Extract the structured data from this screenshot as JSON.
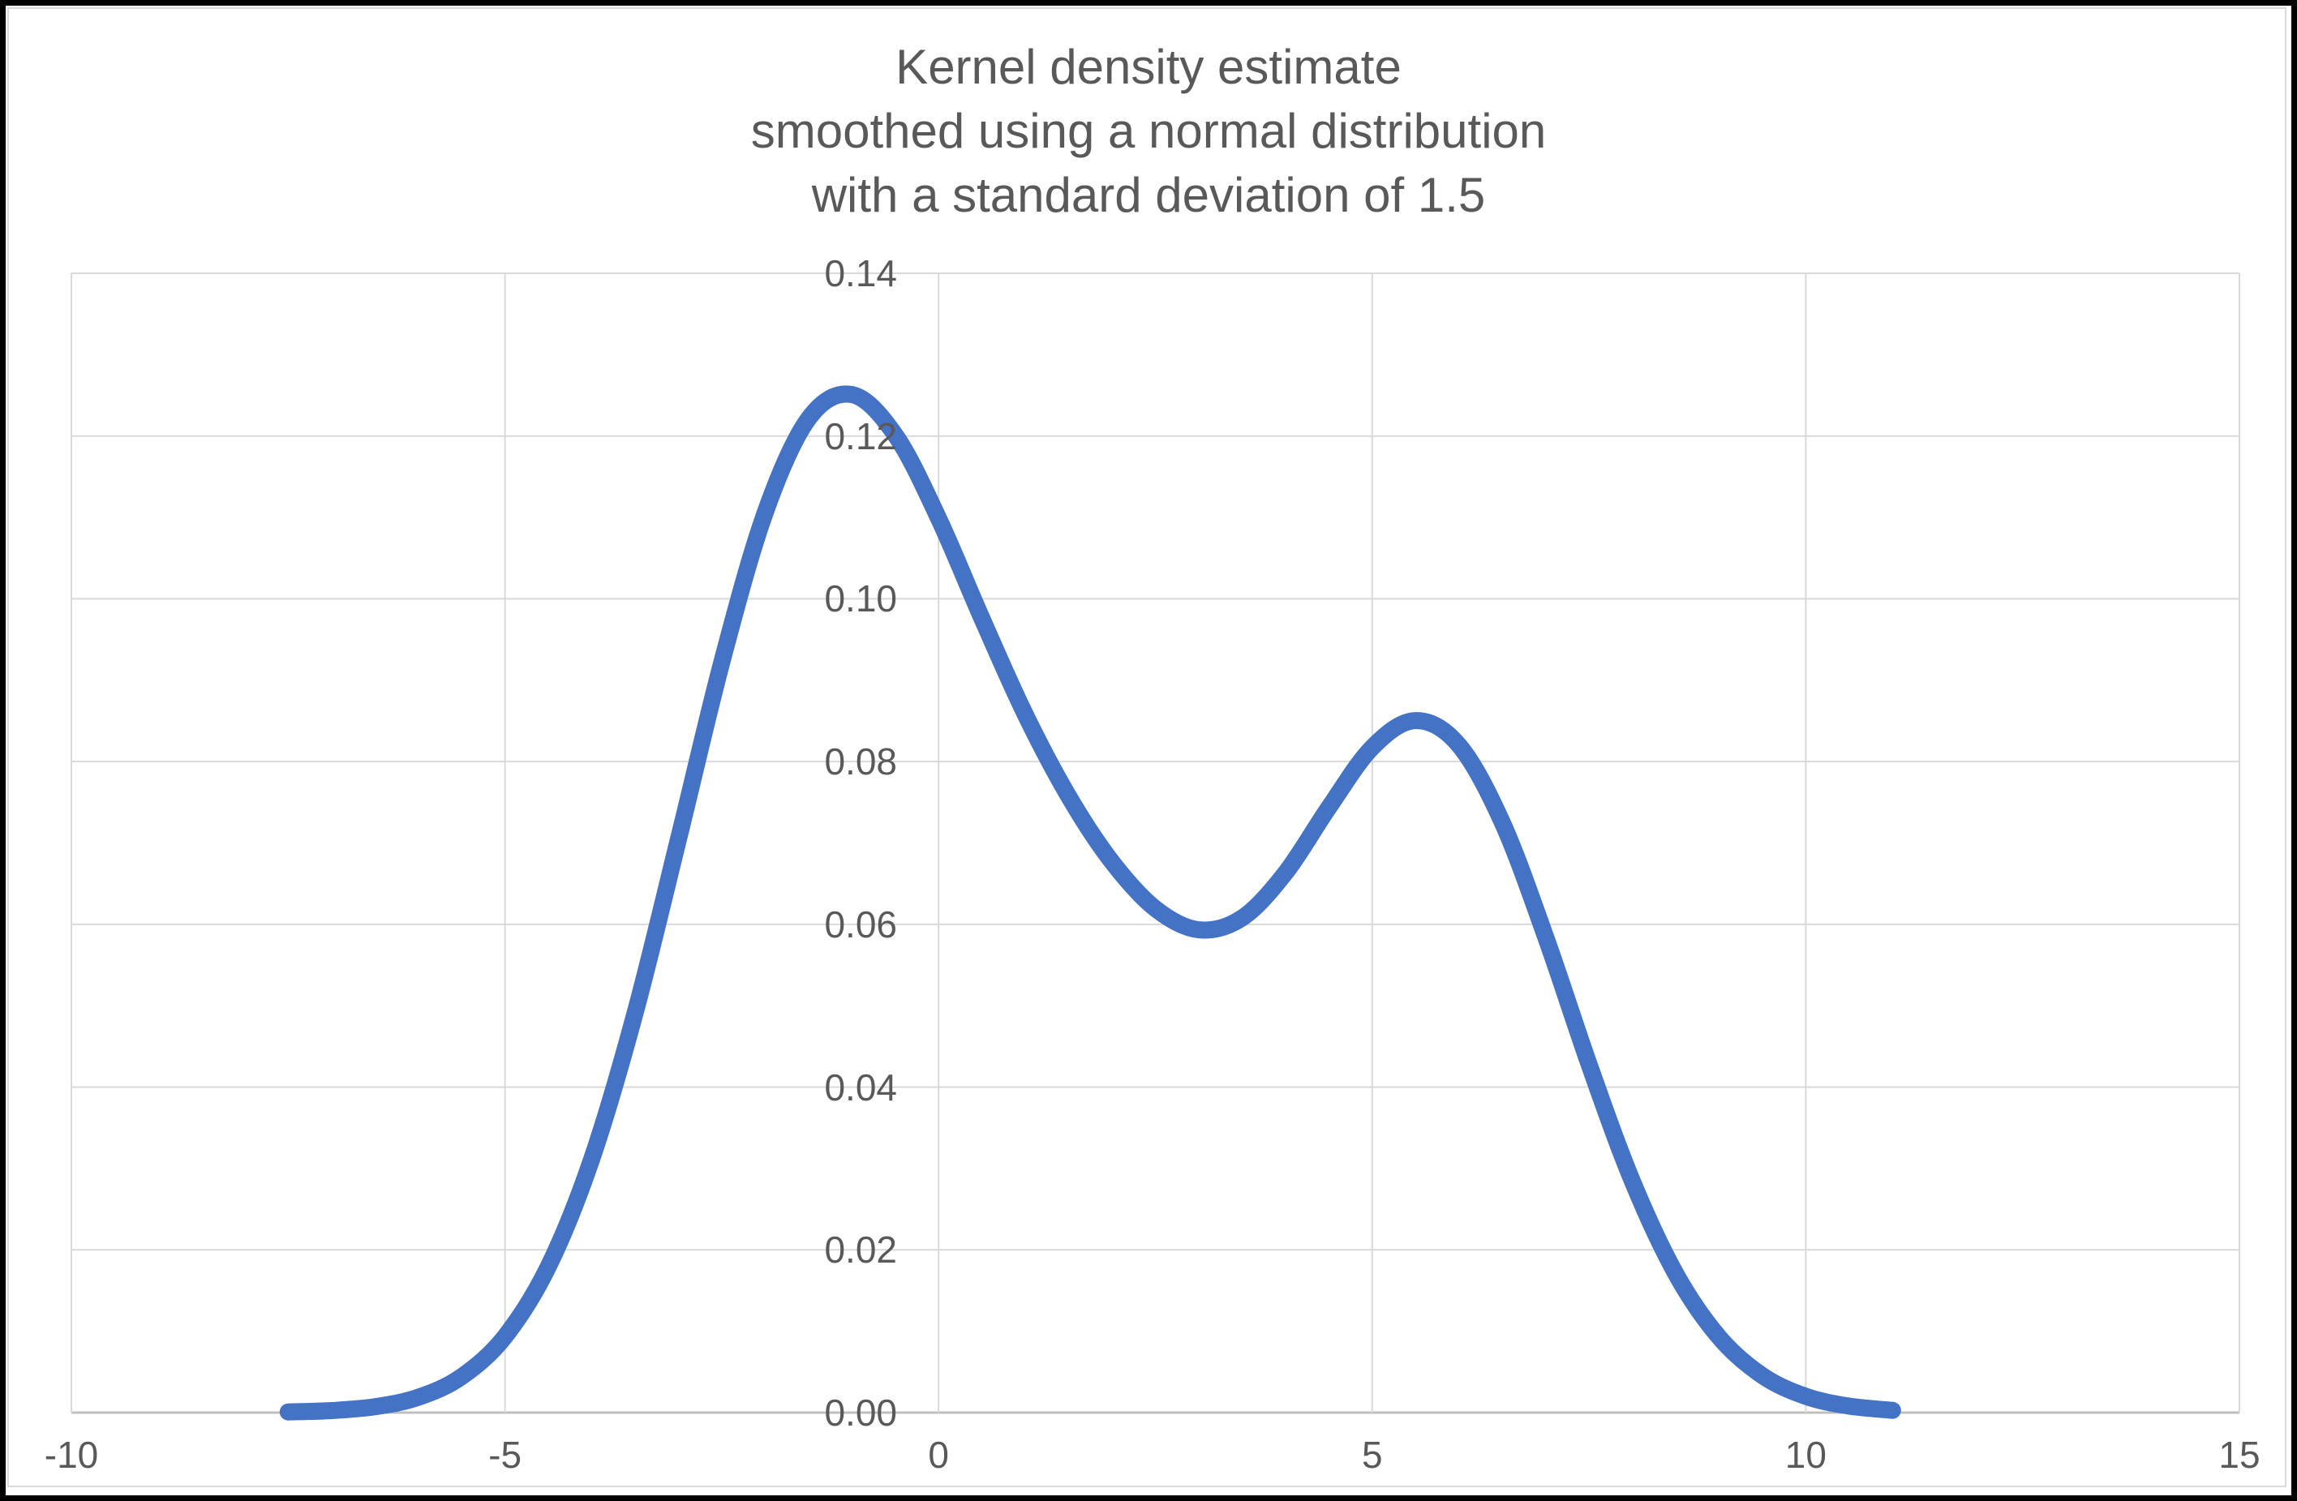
{
  "colors": {
    "background": "#FFFFFF",
    "frame": "#000000",
    "chart_border": "#DADADA",
    "title_text": "#595959",
    "tick_text": "#595959",
    "gridline": "#D9D9D9",
    "axis_line": "#BFBFBF",
    "curve": "#4472C4"
  },
  "chart_data": {
    "type": "line",
    "title": "Kernel density estimate smoothed using a normal distribution with a standard deviation of 1.5",
    "title_lines": [
      "Kernel density estimate",
      "smoothed using a normal distribution",
      "with a standard deviation of 1.5"
    ],
    "xlabel": "",
    "ylabel": "",
    "xlim": [
      -10,
      15
    ],
    "ylim": [
      0,
      0.14
    ],
    "grid": true,
    "legend": "none",
    "x_ticks": [
      {
        "label": "-10",
        "value": -10
      },
      {
        "label": "-5",
        "value": -5
      },
      {
        "label": "0",
        "value": 0
      },
      {
        "label": "5",
        "value": 5
      },
      {
        "label": "10",
        "value": 10
      },
      {
        "label": "15",
        "value": 15
      }
    ],
    "y_ticks": [
      {
        "label": "0.14",
        "value": 0.14
      },
      {
        "label": "0.12",
        "value": 0.12
      },
      {
        "label": "0.10",
        "value": 0.1
      },
      {
        "label": "0.08",
        "value": 0.08
      },
      {
        "label": "0.06",
        "value": 0.06
      },
      {
        "label": "0.04",
        "value": 0.04
      },
      {
        "label": "0.02",
        "value": 0.02
      },
      {
        "label": "0.00",
        "value": 0.0
      }
    ],
    "series": [
      {
        "color": "#4472C4",
        "x": [
          -7.5,
          -7,
          -6.5,
          -6,
          -5.5,
          -5,
          -4.5,
          -4,
          -3.5,
          -3,
          -2.5,
          -2,
          -1.5,
          -1,
          -0.5,
          0,
          0.5,
          1,
          1.5,
          2,
          2.5,
          3,
          3.5,
          4,
          4.5,
          5,
          5.5,
          6,
          6.5,
          7,
          7.5,
          8,
          8.5,
          9,
          9.5,
          10,
          10.5,
          11
        ],
        "y": [
          8e-05,
          0.00025,
          0.00072,
          0.00188,
          0.00441,
          0.00935,
          0.01795,
          0.03115,
          0.04909,
          0.07043,
          0.0922,
          0.11059,
          0.12213,
          0.12509,
          0.12014,
          0.10988,
          0.09757,
          0.08578,
          0.07572,
          0.06767,
          0.06193,
          0.05933,
          0.06078,
          0.06633,
          0.07435,
          0.08173,
          0.08504,
          0.08202,
          0.07252,
          0.05846,
          0.04282,
          0.02843,
          0.01708,
          0.00927,
          0.00454,
          0.002,
          0.0008,
          0.00028
        ]
      }
    ]
  }
}
